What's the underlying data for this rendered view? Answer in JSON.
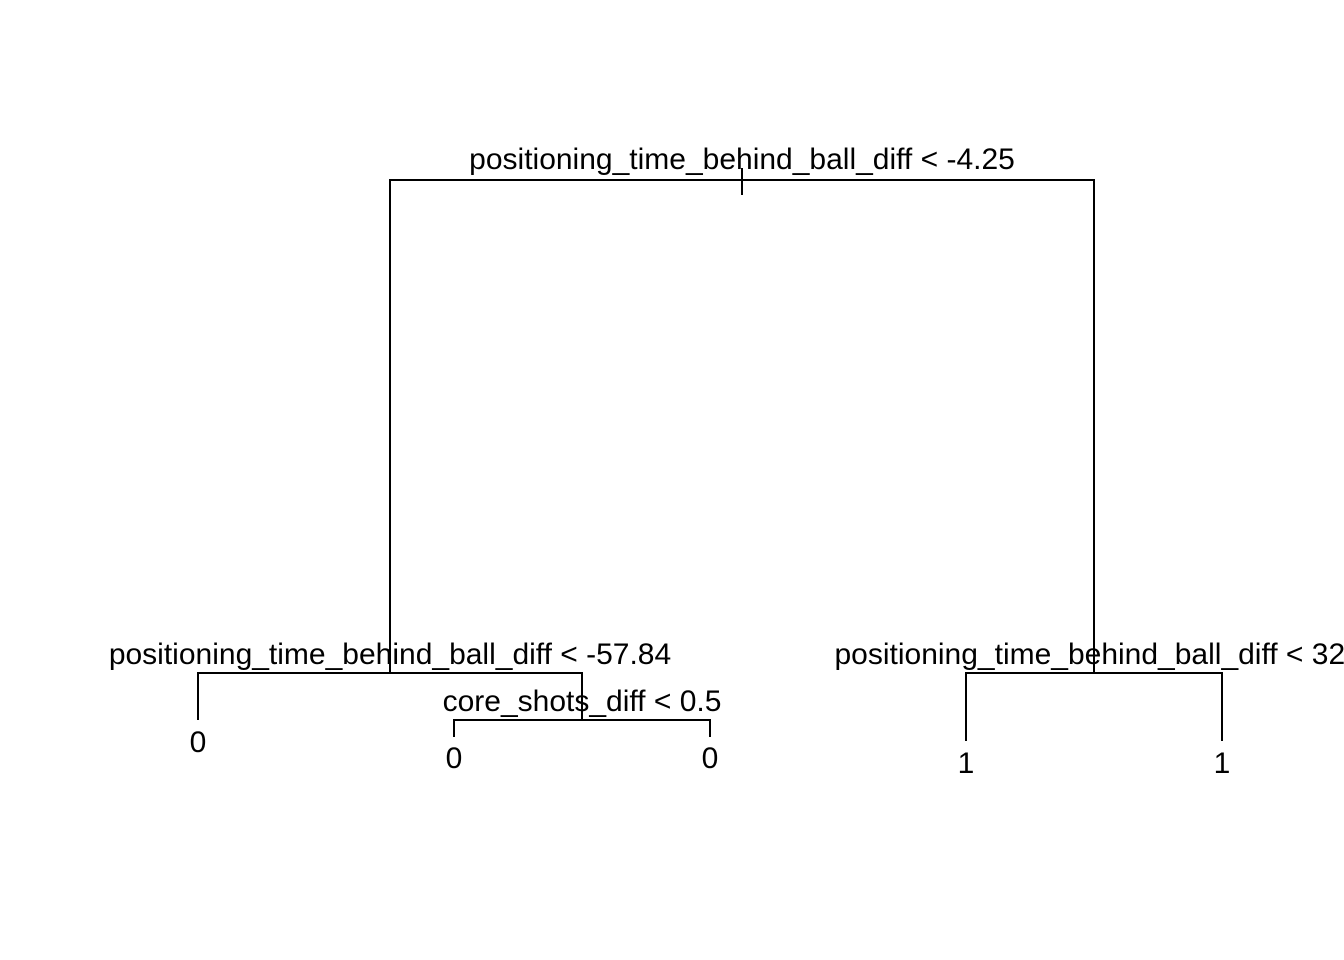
{
  "tree": {
    "root": {
      "split": "positioning_time_behind_ball_diff < -4.25"
    },
    "left": {
      "split": "positioning_time_behind_ball_diff < -57.84"
    },
    "left_right": {
      "split": "core_shots_diff < 0.5"
    },
    "right": {
      "split": "positioning_time_behind_ball_diff < 32."
    },
    "leaves": [
      "0",
      "0",
      "0",
      "1",
      "1"
    ]
  }
}
